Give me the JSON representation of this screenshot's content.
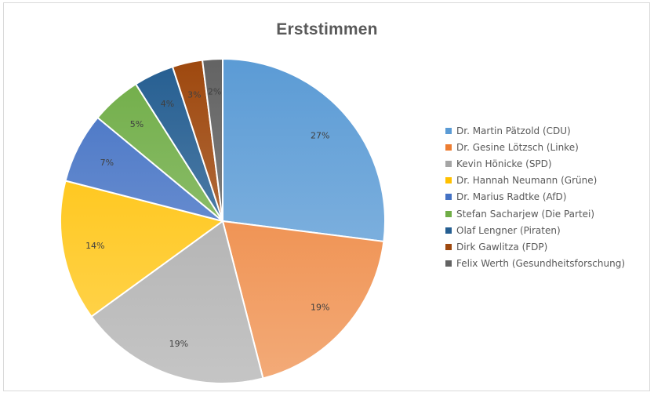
{
  "chart_data": {
    "type": "pie",
    "title": "Erststimmen",
    "legend_position": "right",
    "categories": [
      "Dr. Martin Pätzold (CDU)",
      "Dr. Gesine Lötzsch (Linke)",
      "Kevin Hönicke (SPD)",
      "Dr. Hannah Neumann (Grüne)",
      "Dr. Marius Radtke (AfD)",
      "Stefan Sacharjew (Die Partei)",
      "Olaf Lengner (Piraten)",
      "Dirk Gawlitza (FDP)",
      "Felix Werth (Gesundheitsforschung)"
    ],
    "values": [
      27,
      19,
      19,
      14,
      7,
      5,
      4,
      3,
      2
    ],
    "labels": [
      "27%",
      "19%",
      "19%",
      "14%",
      "7%",
      "5%",
      "4%",
      "3%",
      "2%"
    ],
    "colors": [
      "#5b9bd5",
      "#ed7d31",
      "#a5a5a5",
      "#ffc000",
      "#4472c4",
      "#70ad47",
      "#255e91",
      "#9e480e",
      "#636363"
    ]
  }
}
